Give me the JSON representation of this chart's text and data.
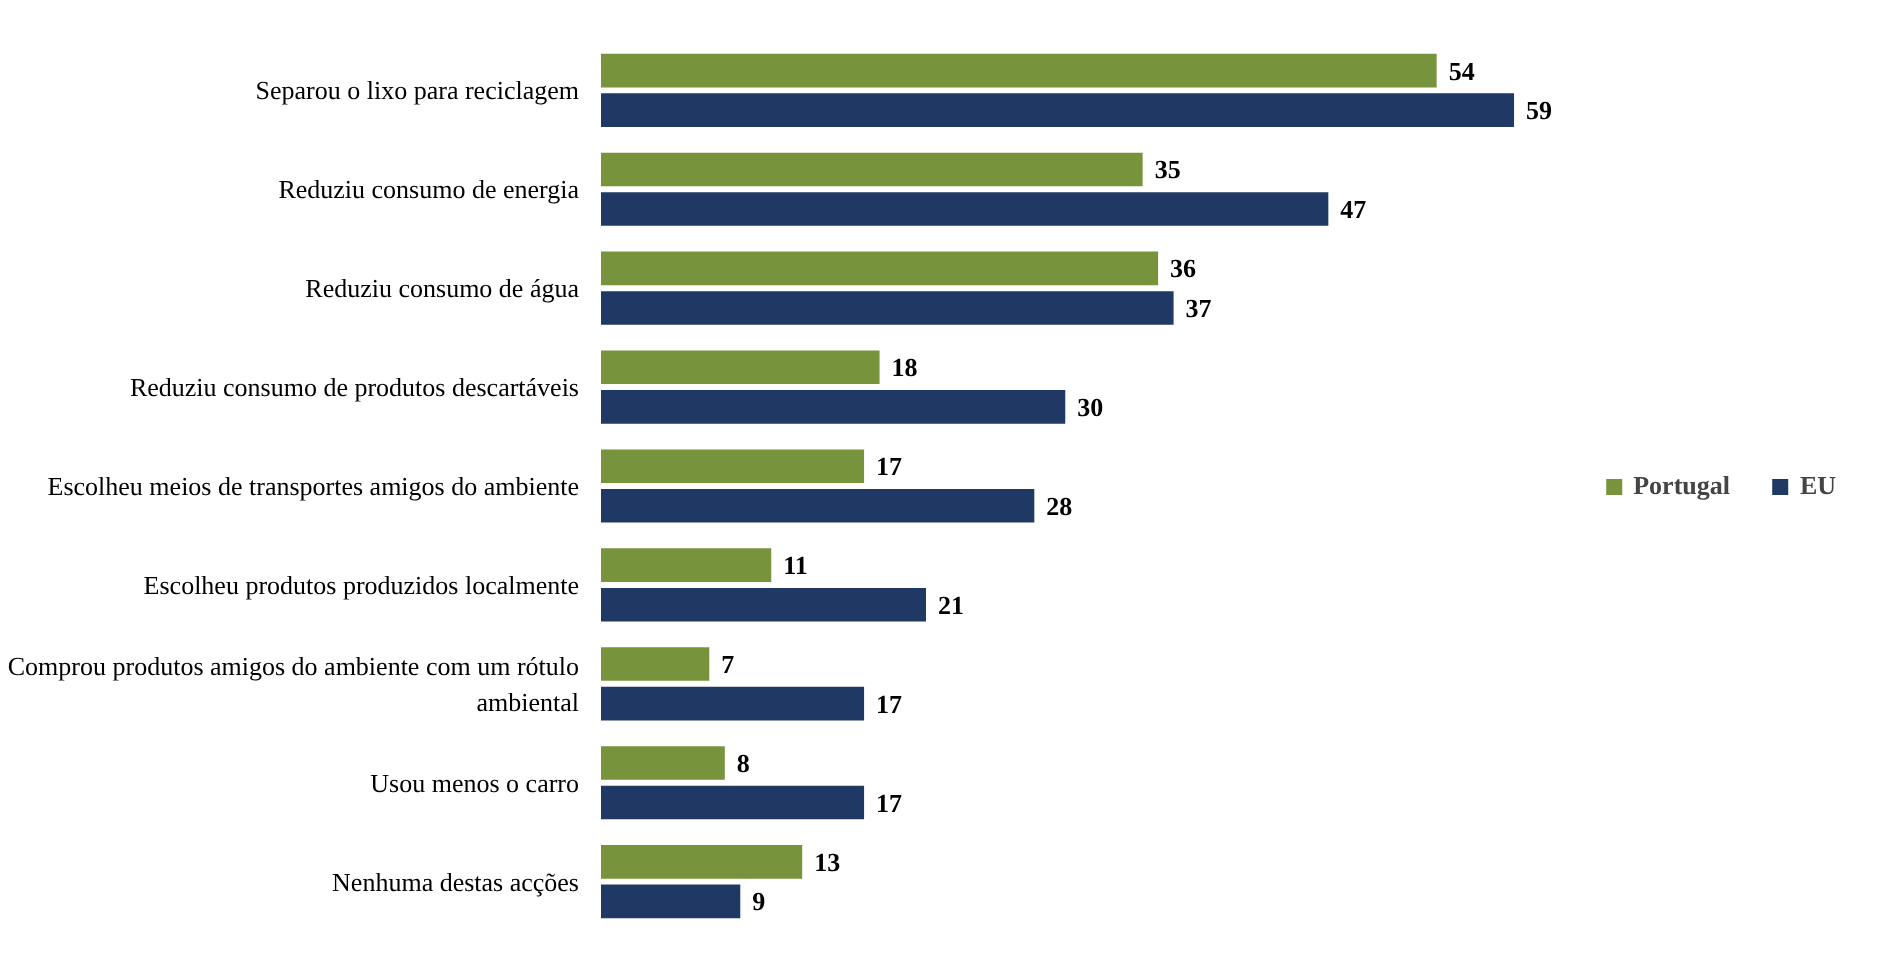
{
  "chart_data": {
    "type": "bar",
    "orientation": "horizontal",
    "data_labels": true,
    "legend": "right",
    "grid": false,
    "categories": [
      "Separou o lixo para reciclagem",
      "Reduziu consumo de energia",
      "Reduziu consumo de água",
      "Reduziu consumo de produtos descartáveis",
      "Escolheu meios de transportes amigos do ambiente",
      "Escolheu produtos produzidos localmente",
      "Comprou produtos amigos do ambiente com um rótulo ambiental",
      "Usou menos o carro",
      "Nenhuma destas acções"
    ],
    "series": [
      {
        "name": "Portugal",
        "color": "#77933c",
        "values": [
          54,
          35,
          36,
          18,
          17,
          11,
          7,
          8,
          13
        ]
      },
      {
        "name": "EU",
        "color": "#1f3864",
        "values": [
          59,
          47,
          37,
          30,
          28,
          21,
          17,
          17,
          9
        ]
      }
    ]
  }
}
